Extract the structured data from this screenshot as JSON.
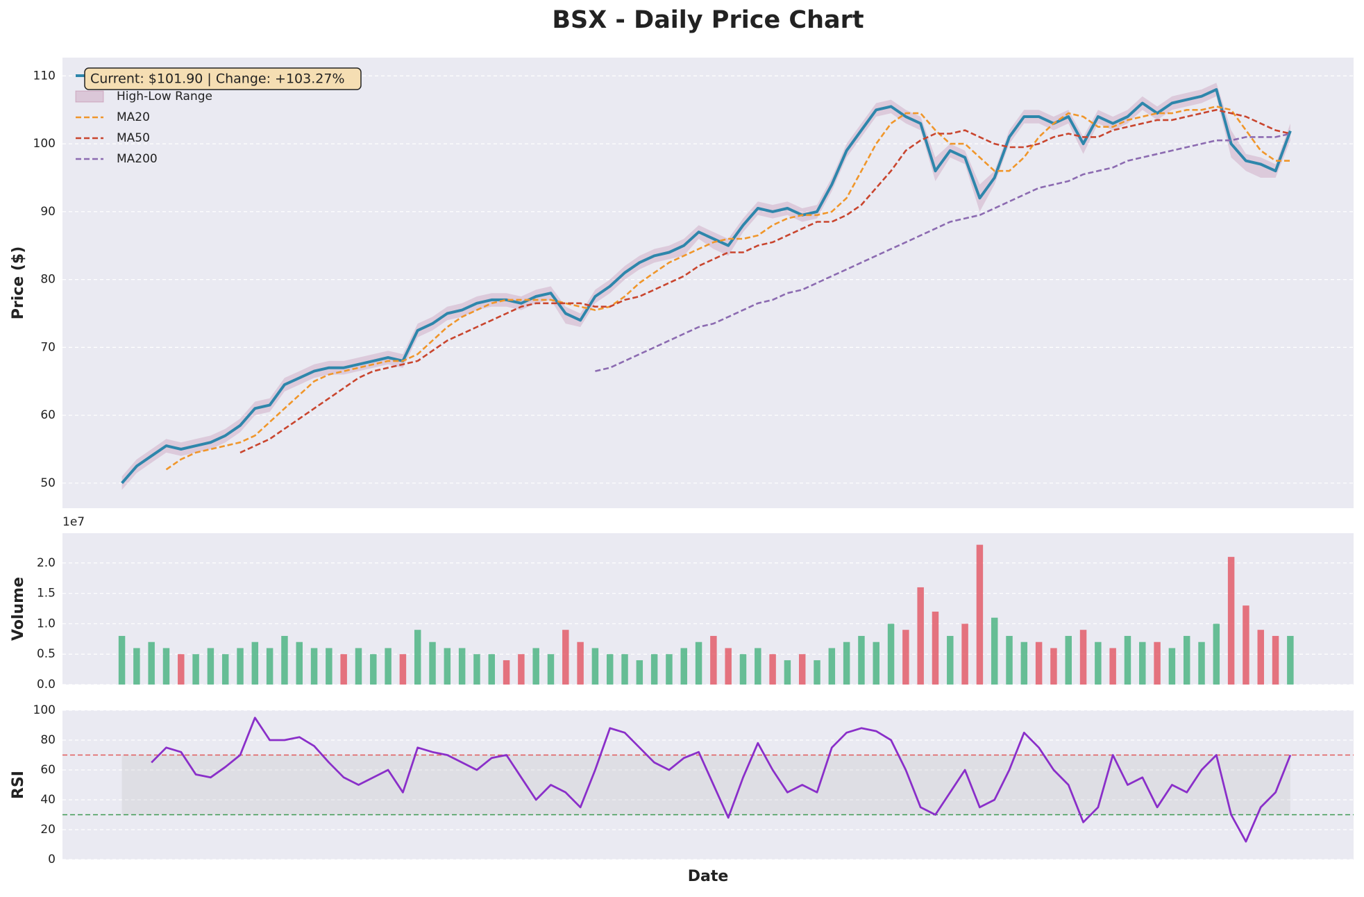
{
  "chart_data": [
    {
      "type": "line",
      "title": "BSX - Daily Price Chart",
      "ylabel": "Price ($)",
      "annotation": "Current: $101.90 | Change: +103.27%",
      "legend": "upper left",
      "grid": true,
      "ylim": [
        46.3,
        112.7
      ],
      "yticks": [
        50,
        60,
        70,
        80,
        90,
        100,
        110
      ],
      "series": [
        {
          "name": "Close Price",
          "color": "#2e86ab",
          "linestyle": "solid",
          "values": [
            50,
            52.5,
            54,
            55.5,
            55,
            55.5,
            56,
            57,
            58.5,
            61,
            61.5,
            64.5,
            65.5,
            66.5,
            67,
            67,
            67.5,
            68,
            68.5,
            68,
            72.5,
            73.5,
            75,
            75.5,
            76.5,
            77,
            77,
            76.5,
            77.5,
            78,
            75,
            74,
            77.5,
            79,
            81,
            82.5,
            83.5,
            84,
            85,
            87,
            86,
            85,
            88,
            90.5,
            90,
            90.5,
            89.5,
            90,
            94,
            99,
            102,
            105,
            105.5,
            104,
            103,
            96,
            99,
            98,
            92,
            95,
            101,
            104,
            104,
            103,
            104,
            100,
            104,
            103,
            104,
            106,
            104.5,
            106,
            106.5,
            107,
            108,
            100,
            97.5,
            97,
            96,
            101.9
          ]
        },
        {
          "name": "High-Low Range",
          "color": "#a23b72",
          "high": [
            51,
            53.5,
            55,
            56.5,
            56,
            56.5,
            57,
            58,
            59.5,
            62,
            62.5,
            65.5,
            66.5,
            67.5,
            68,
            68,
            68.5,
            69,
            69.5,
            69,
            73.5,
            74.5,
            76,
            76.5,
            77.5,
            78,
            78,
            77.5,
            78.5,
            79,
            76,
            75,
            78.5,
            80,
            82,
            83.5,
            84.5,
            85,
            86,
            88,
            87,
            86,
            89,
            91.5,
            91,
            91.5,
            90.5,
            91,
            95,
            100,
            103,
            106,
            106.5,
            105,
            104,
            98,
            100,
            99,
            94,
            96,
            102,
            105,
            105,
            104,
            105,
            101,
            105,
            104,
            105,
            107,
            105.5,
            107,
            107.5,
            108,
            109,
            102,
            98.5,
            98,
            97,
            103
          ],
          "low": [
            49,
            51.5,
            53,
            54.5,
            54,
            54.5,
            55,
            56,
            57.5,
            60,
            60.5,
            63.5,
            64.5,
            65.5,
            66,
            66,
            66.5,
            67,
            67.5,
            67,
            71.5,
            72.5,
            74,
            74.5,
            75.5,
            76,
            76,
            75.5,
            76.5,
            77,
            73.5,
            73,
            76.5,
            78,
            80,
            81.5,
            82.5,
            83,
            83.5,
            86,
            84.5,
            83.5,
            87,
            89.5,
            89,
            89.5,
            88.5,
            89,
            93,
            98,
            101,
            104,
            104.5,
            103,
            102,
            94.5,
            98,
            97,
            90,
            94,
            100,
            103,
            103,
            102,
            103,
            98.5,
            103,
            102,
            103,
            105,
            103.5,
            105,
            105.5,
            106,
            107,
            98,
            96,
            95,
            95,
            100.5
          ]
        },
        {
          "name": "MA20",
          "color": "#f0962a",
          "linestyle": "dashed",
          "values": [
            null,
            null,
            null,
            52,
            53.5,
            54.5,
            55,
            55.5,
            56,
            57,
            59,
            61,
            63,
            65,
            66,
            66.5,
            67,
            67.5,
            68,
            68,
            69,
            71,
            73,
            74.5,
            75.5,
            76.5,
            77,
            77,
            77,
            77,
            76.5,
            76,
            75.5,
            76,
            77.5,
            79.5,
            81,
            82.5,
            83.5,
            84.5,
            85.5,
            86,
            86,
            86.5,
            88,
            89,
            89.5,
            89.5,
            90,
            92,
            96,
            100,
            103,
            104.5,
            104.5,
            102,
            100,
            100,
            98,
            96,
            96,
            98,
            101,
            103,
            104.5,
            104,
            102.5,
            102.5,
            103.5,
            104,
            104.5,
            104.5,
            105,
            105,
            105.5,
            105,
            102,
            99,
            97.5,
            97.5
          ]
        },
        {
          "name": "MA50",
          "color": "#c9452e",
          "linestyle": "dashed",
          "values": [
            null,
            null,
            null,
            null,
            null,
            null,
            null,
            null,
            54.5,
            55.5,
            56.5,
            58,
            59.5,
            61,
            62.5,
            64,
            65.5,
            66.5,
            67,
            67.5,
            68,
            69.5,
            71,
            72,
            73,
            74,
            75,
            76,
            76.5,
            76.5,
            76.5,
            76.5,
            76,
            76,
            77,
            77.5,
            78.5,
            79.5,
            80.5,
            82,
            83,
            84,
            84,
            85,
            85.5,
            86.5,
            87.5,
            88.5,
            88.5,
            89.5,
            91,
            93.5,
            96,
            99,
            100.5,
            101.5,
            101.5,
            102,
            101,
            100,
            99.5,
            99.5,
            100,
            101,
            101.5,
            101,
            101,
            102,
            102.5,
            103,
            103.5,
            103.5,
            104,
            104.5,
            105,
            104.5,
            104,
            103,
            102,
            101.5
          ]
        },
        {
          "name": "MA200",
          "color": "#8c6bb1",
          "linestyle": "dashed",
          "values": [
            null,
            null,
            null,
            null,
            null,
            null,
            null,
            null,
            null,
            null,
            null,
            null,
            null,
            null,
            null,
            null,
            null,
            null,
            null,
            null,
            null,
            null,
            null,
            null,
            null,
            null,
            null,
            null,
            null,
            null,
            null,
            null,
            66.5,
            67,
            68,
            69,
            70,
            71,
            72,
            73,
            73.5,
            74.5,
            75.5,
            76.5,
            77,
            78,
            78.5,
            79.5,
            80.5,
            81.5,
            82.5,
            83.5,
            84.5,
            85.5,
            86.5,
            87.5,
            88.5,
            89,
            89.5,
            90.5,
            91.5,
            92.5,
            93.5,
            94,
            94.5,
            95.5,
            96,
            96.5,
            97.5,
            98,
            98.5,
            99,
            99.5,
            100,
            100.5,
            100.5,
            101,
            101,
            101,
            101.5
          ]
        }
      ]
    },
    {
      "type": "bar",
      "ylabel": "Volume",
      "offset_label": "1e7",
      "grid": true,
      "ylim": [
        0,
        2.49
      ],
      "yticks": [
        {
          "value": 0,
          "label": "0.0"
        },
        0.5,
        {
          "value": 1,
          "label": "1.0"
        },
        1.5,
        {
          "value": 2,
          "label": "2.0"
        }
      ],
      "values": [
        0.8,
        0.6,
        0.7,
        0.6,
        0.5,
        0.5,
        0.6,
        0.5,
        0.6,
        0.7,
        0.6,
        0.8,
        0.7,
        0.6,
        0.6,
        0.5,
        0.6,
        0.5,
        0.6,
        0.5,
        0.9,
        0.7,
        0.6,
        0.6,
        0.5,
        0.5,
        0.4,
        0.5,
        0.6,
        0.5,
        0.9,
        0.7,
        0.6,
        0.5,
        0.5,
        0.4,
        0.5,
        0.5,
        0.6,
        0.7,
        0.8,
        0.6,
        0.5,
        0.6,
        0.5,
        0.4,
        0.5,
        0.4,
        0.6,
        0.7,
        0.8,
        0.7,
        1.0,
        0.9,
        1.6,
        1.2,
        0.8,
        1.0,
        2.3,
        1.1,
        0.8,
        0.7,
        0.7,
        0.6,
        0.8,
        0.9,
        0.7,
        0.6,
        0.8,
        0.7,
        0.7,
        0.6,
        0.8,
        0.7,
        1.0,
        2.1,
        1.3,
        0.9,
        0.8,
        0.8
      ],
      "colors": [
        "#4fb585",
        "#4fb585",
        "#4fb585",
        "#4fb585",
        "#e35d6a",
        "#4fb585",
        "#4fb585",
        "#4fb585",
        "#4fb585",
        "#4fb585",
        "#4fb585",
        "#4fb585",
        "#4fb585",
        "#4fb585",
        "#4fb585",
        "#e35d6a",
        "#4fb585",
        "#4fb585",
        "#4fb585",
        "#e35d6a",
        "#4fb585",
        "#4fb585",
        "#4fb585",
        "#4fb585",
        "#4fb585",
        "#4fb585",
        "#e35d6a",
        "#e35d6a",
        "#4fb585",
        "#4fb585",
        "#e35d6a",
        "#e35d6a",
        "#4fb585",
        "#4fb585",
        "#4fb585",
        "#4fb585",
        "#4fb585",
        "#4fb585",
        "#4fb585",
        "#4fb585",
        "#e35d6a",
        "#e35d6a",
        "#4fb585",
        "#4fb585",
        "#e35d6a",
        "#4fb585",
        "#e35d6a",
        "#4fb585",
        "#4fb585",
        "#4fb585",
        "#4fb585",
        "#4fb585",
        "#4fb585",
        "#e35d6a",
        "#e35d6a",
        "#e35d6a",
        "#4fb585",
        "#e35d6a",
        "#e35d6a",
        "#4fb585",
        "#4fb585",
        "#4fb585",
        "#e35d6a",
        "#e35d6a",
        "#4fb585",
        "#e35d6a",
        "#4fb585",
        "#e35d6a",
        "#4fb585",
        "#4fb585",
        "#e35d6a",
        "#4fb585",
        "#4fb585",
        "#4fb585",
        "#4fb585",
        "#e35d6a",
        "#e35d6a",
        "#e35d6a",
        "#e35d6a",
        "#4fb585"
      ]
    },
    {
      "type": "line",
      "ylabel": "RSI",
      "xlabel": "Date",
      "grid": true,
      "ylim": [
        0,
        100
      ],
      "yticks": [
        0,
        20,
        40,
        60,
        80,
        100
      ],
      "hlines": [
        {
          "value": 70,
          "color": "#e05a5a"
        },
        {
          "value": 30,
          "color": "#3e9a52"
        }
      ],
      "series": [
        {
          "color": "#8a2fc9",
          "linestyle": "solid",
          "values": [
            null,
            null,
            65,
            75,
            72,
            57,
            55,
            62,
            70,
            95,
            80,
            80,
            82,
            76,
            65,
            55,
            50,
            55,
            60,
            45,
            75,
            72,
            70,
            65,
            60,
            68,
            70,
            55,
            40,
            50,
            45,
            35,
            60,
            88,
            85,
            75,
            65,
            60,
            68,
            72,
            50,
            28,
            55,
            78,
            60,
            45,
            50,
            45,
            75,
            85,
            88,
            86,
            80,
            60,
            35,
            30,
            45,
            60,
            35,
            40,
            60,
            85,
            75,
            60,
            50,
            25,
            35,
            70,
            50,
            55,
            35,
            50,
            45,
            60,
            70,
            30,
            12,
            35,
            45,
            70
          ]
        }
      ]
    }
  ]
}
